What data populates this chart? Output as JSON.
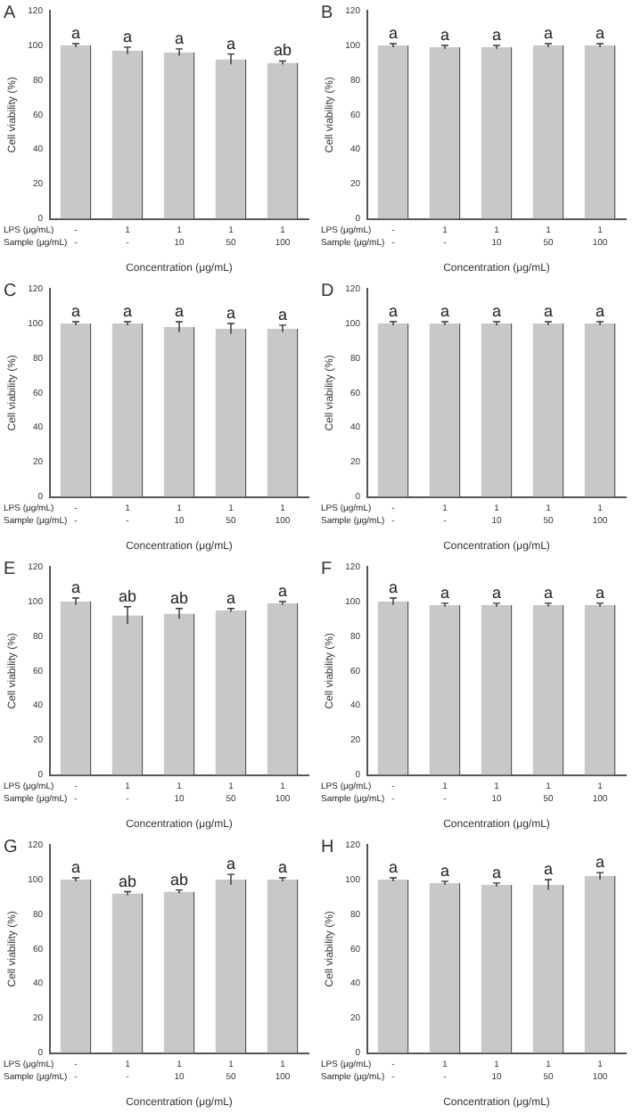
{
  "chart_data": [
    {
      "type": "bar",
      "title": "A",
      "xlabel": "Concentration (μg/mL)",
      "ylabel": "Cell viability (%)",
      "categories": [
        "-\n-",
        "1\n-",
        "1\n10",
        "1\n50",
        "1\n100"
      ],
      "values": [
        100,
        97,
        96,
        92,
        90
      ],
      "errors": [
        1,
        2,
        2,
        3,
        1
      ],
      "color": "#c8c8c8",
      "ylim": [
        0,
        120
      ],
      "yticks": [
        0,
        20,
        40,
        60,
        80,
        100,
        120
      ],
      "grid": false,
      "legend": false,
      "annotations": [
        "LPS (μg/mL)",
        "Sample (μg/mL)",
        {
          "text": "a",
          "x": "-\n-",
          "y": 101
        },
        {
          "text": "a",
          "x": "1\n-",
          "y": 99
        },
        {
          "text": "a",
          "x": "1\n10",
          "y": 98
        },
        {
          "text": "a",
          "x": "1\n50",
          "y": 95
        },
        {
          "text": "ab",
          "x": "1\n100",
          "y": 91
        }
      ]
    },
    {
      "type": "bar",
      "title": "B",
      "xlabel": "Concentration (μg/mL)",
      "ylabel": "Cell viability (%)",
      "categories": [
        "-\n-",
        "1\n-",
        "1\n10",
        "1\n50",
        "1\n100"
      ],
      "values": [
        100,
        99,
        99,
        100,
        100
      ],
      "errors": [
        1,
        1,
        1,
        1,
        1
      ],
      "color": "#c8c8c8",
      "ylim": [
        0,
        120
      ],
      "yticks": [
        0,
        20,
        40,
        60,
        80,
        100,
        120
      ],
      "grid": false,
      "legend": false,
      "annotations": [
        "LPS (μg/mL)",
        "Sample (μg/mL)",
        {
          "text": "a",
          "x": "-\n-",
          "y": 101
        },
        {
          "text": "a",
          "x": "1\n-",
          "y": 100
        },
        {
          "text": "a",
          "x": "1\n10",
          "y": 100
        },
        {
          "text": "a",
          "x": "1\n50",
          "y": 101
        },
        {
          "text": "a",
          "x": "1\n100",
          "y": 101
        }
      ]
    },
    {
      "type": "bar",
      "title": "C",
      "xlabel": "Concentration (μg/mL)",
      "ylabel": "Cell viability (%)",
      "categories": [
        "-\n-",
        "1\n-",
        "1\n10",
        "1\n50",
        "1\n100"
      ],
      "values": [
        100,
        100,
        98,
        97,
        97
      ],
      "errors": [
        1,
        1,
        3,
        3,
        2
      ],
      "color": "#c8c8c8",
      "ylim": [
        0,
        120
      ],
      "yticks": [
        0,
        20,
        40,
        60,
        80,
        100,
        120
      ],
      "grid": false,
      "legend": false,
      "annotations": [
        "LPS (μg/mL)",
        "Sample (μg/mL)",
        {
          "text": "a",
          "x": "-\n-",
          "y": 101
        },
        {
          "text": "a",
          "x": "1\n-",
          "y": 101
        },
        {
          "text": "a",
          "x": "1\n10",
          "y": 101
        },
        {
          "text": "a",
          "x": "1\n50",
          "y": 100
        },
        {
          "text": "a",
          "x": "1\n100",
          "y": 99
        }
      ]
    },
    {
      "type": "bar",
      "title": "D",
      "xlabel": "Concentration (μg/mL)",
      "ylabel": "Cell viability (%)",
      "categories": [
        "-\n-",
        "1\n-",
        "1\n10",
        "1\n50",
        "1\n100"
      ],
      "values": [
        100,
        100,
        100,
        100,
        100
      ],
      "errors": [
        1,
        1,
        1,
        1,
        1
      ],
      "color": "#c8c8c8",
      "ylim": [
        0,
        120
      ],
      "yticks": [
        0,
        20,
        40,
        60,
        80,
        100,
        120
      ],
      "grid": false,
      "legend": false,
      "annotations": [
        "LPS (μg/mL)",
        "Sample (μg/mL)",
        {
          "text": "a",
          "x": "-\n-",
          "y": 101
        },
        {
          "text": "a",
          "x": "1\n-",
          "y": 101
        },
        {
          "text": "a",
          "x": "1\n10",
          "y": 101
        },
        {
          "text": "a",
          "x": "1\n50",
          "y": 101
        },
        {
          "text": "a",
          "x": "1\n100",
          "y": 101
        }
      ]
    },
    {
      "type": "bar",
      "title": "E",
      "xlabel": "Concentration (μg/mL)",
      "ylabel": "Cell viability (%)",
      "categories": [
        "-\n-",
        "1\n-",
        "1\n10",
        "1\n50",
        "1\n100"
      ],
      "values": [
        100,
        92,
        93,
        95,
        99
      ],
      "errors": [
        2,
        5,
        3,
        1,
        1
      ],
      "color": "#c8c8c8",
      "ylim": [
        0,
        120
      ],
      "yticks": [
        0,
        20,
        40,
        60,
        80,
        100,
        120
      ],
      "grid": false,
      "legend": false,
      "annotations": [
        "LPS (μg/mL)",
        "Sample (μg/mL)",
        {
          "text": "a",
          "x": "-\n-",
          "y": 102
        },
        {
          "text": "ab",
          "x": "1\n-",
          "y": 97
        },
        {
          "text": "ab",
          "x": "1\n10",
          "y": 96
        },
        {
          "text": "a",
          "x": "1\n50",
          "y": 96
        },
        {
          "text": "a",
          "x": "1\n100",
          "y": 100
        }
      ]
    },
    {
      "type": "bar",
      "title": "F",
      "xlabel": "Concentration (μg/mL)",
      "ylabel": "Cell viability (%)",
      "categories": [
        "-\n-",
        "1\n-",
        "1\n10",
        "1\n50",
        "1\n100"
      ],
      "values": [
        100,
        98,
        98,
        98,
        98
      ],
      "errors": [
        2,
        1,
        1,
        1,
        1
      ],
      "color": "#c8c8c8",
      "ylim": [
        0,
        120
      ],
      "yticks": [
        0,
        20,
        40,
        60,
        80,
        100,
        120
      ],
      "grid": false,
      "legend": false,
      "annotations": [
        "LPS (μg/mL)",
        "Sample (μg/mL)",
        {
          "text": "a",
          "x": "-\n-",
          "y": 102
        },
        {
          "text": "a",
          "x": "1\n-",
          "y": 99
        },
        {
          "text": "a",
          "x": "1\n10",
          "y": 99
        },
        {
          "text": "a",
          "x": "1\n50",
          "y": 99
        },
        {
          "text": "a",
          "x": "1\n100",
          "y": 99
        }
      ]
    },
    {
      "type": "bar",
      "title": "G",
      "xlabel": "Concentration (μg/mL)",
      "ylabel": "Cell viability (%)",
      "categories": [
        "-\n-",
        "1\n-",
        "1\n10",
        "1\n50",
        "1\n100"
      ],
      "values": [
        100,
        92,
        93,
        100,
        100
      ],
      "errors": [
        1,
        1,
        1,
        3,
        1
      ],
      "color": "#c8c8c8",
      "ylim": [
        0,
        120
      ],
      "yticks": [
        0,
        20,
        40,
        60,
        80,
        100,
        120
      ],
      "grid": false,
      "legend": false,
      "annotations": [
        "LPS (μg/mL)",
        "Sample (μg/mL)",
        {
          "text": "a",
          "x": "-\n-",
          "y": 101
        },
        {
          "text": "ab",
          "x": "1\n-",
          "y": 93
        },
        {
          "text": "ab",
          "x": "1\n10",
          "y": 94
        },
        {
          "text": "a",
          "x": "1\n50",
          "y": 103
        },
        {
          "text": "a",
          "x": "1\n100",
          "y": 101
        }
      ]
    },
    {
      "type": "bar",
      "title": "H",
      "xlabel": "Concentration (μg/mL)",
      "ylabel": "Cell viability (%)",
      "categories": [
        "-\n-",
        "1\n-",
        "1\n10",
        "1\n50",
        "1\n100"
      ],
      "values": [
        100,
        98,
        97,
        97,
        102
      ],
      "errors": [
        1,
        1,
        1,
        3,
        2
      ],
      "color": "#c8c8c8",
      "ylim": [
        0,
        120
      ],
      "yticks": [
        0,
        20,
        40,
        60,
        80,
        100,
        120
      ],
      "grid": false,
      "legend": false,
      "annotations": [
        "LPS (μg/mL)",
        "Sample (μg/mL)",
        {
          "text": "a",
          "x": "-\n-",
          "y": 101
        },
        {
          "text": "a",
          "x": "1\n-",
          "y": 99
        },
        {
          "text": "a",
          "x": "1\n10",
          "y": 98
        },
        {
          "text": "a",
          "x": "1\n50",
          "y": 100
        },
        {
          "text": "a",
          "x": "1\n100",
          "y": 104
        }
      ]
    }
  ]
}
